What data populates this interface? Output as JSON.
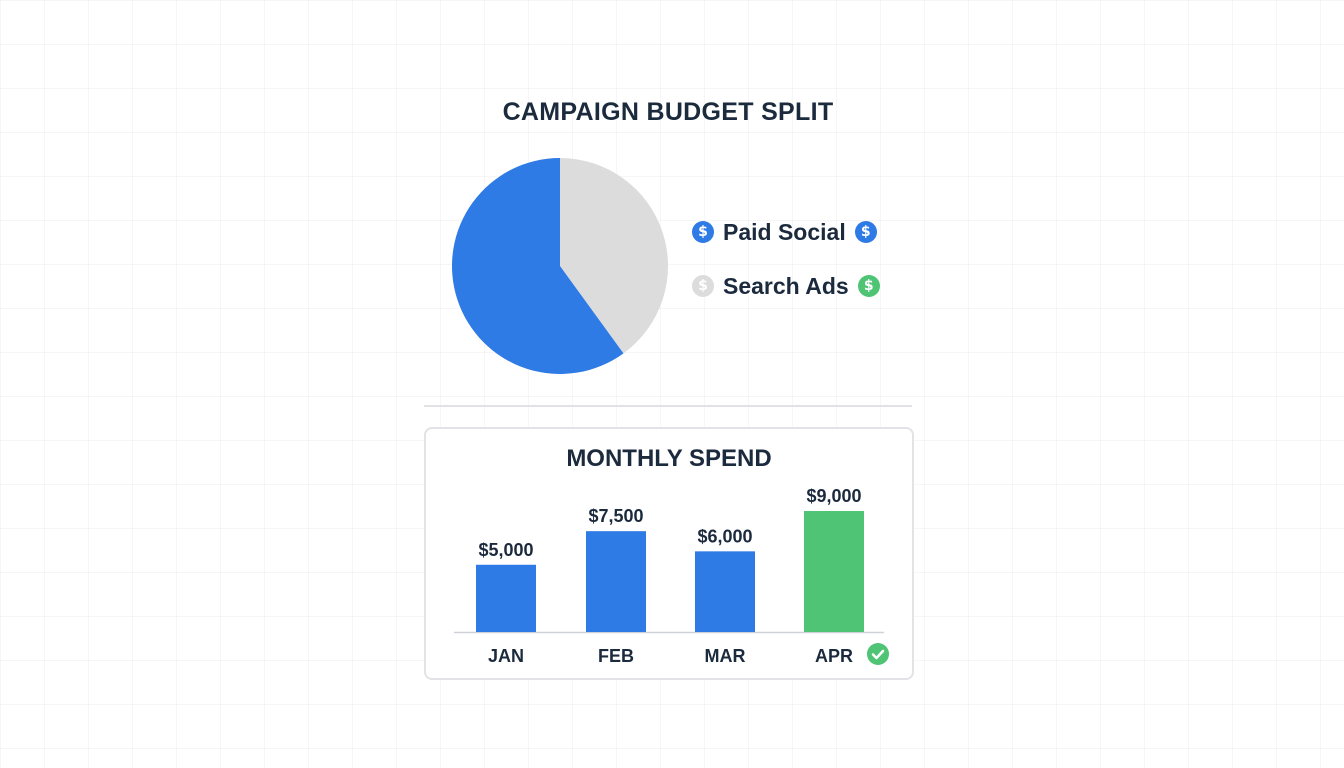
{
  "chart_data": [
    {
      "type": "pie",
      "title": "CAMPAIGN BUDGET SPLIT",
      "slices": [
        {
          "label": "Paid Social",
          "value": 60,
          "color": "#2f7be6"
        },
        {
          "label": "Search Ads",
          "value": 40,
          "color": "#dcdcdc"
        }
      ],
      "legend": {
        "placement": "right",
        "items": [
          {
            "label": "Paid Social",
            "left_icon": "dollar-coin-icon",
            "left_color": "#2f7be6",
            "right_icon": "dollar-coin-icon",
            "right_color": "#2f7be6"
          },
          {
            "label": "Search Ads",
            "left_icon": "dollar-coin-icon",
            "left_color": "#dcdcdc",
            "right_icon": "dollar-coin-icon",
            "right_color": "#4ec474"
          }
        ]
      }
    },
    {
      "type": "bar",
      "title": "MONTHLY SPEND",
      "categories": [
        "JAN",
        "FEB",
        "MAR",
        "APR"
      ],
      "values": [
        5000,
        7500,
        6000,
        9000
      ],
      "data_labels": [
        "$5,000",
        "$7,500",
        "$6,000",
        "$9,000"
      ],
      "colors": [
        "#2f7be6",
        "#2f7be6",
        "#2f7be6",
        "#4ec474"
      ],
      "highlight": {
        "category": "APR",
        "icon": "check-circle-icon",
        "color": "#4ec474"
      },
      "grid": false
    }
  ],
  "icons": {
    "coin_glyph": "$",
    "check_glyph": "✓"
  }
}
